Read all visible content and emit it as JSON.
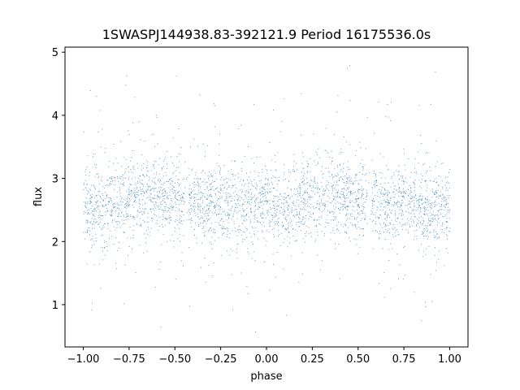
{
  "chart_data": {
    "type": "scatter",
    "title": "1SWASPJ144938.83-392121.9 Period 16175536.0s",
    "xlabel": "phase",
    "ylabel": "flux",
    "xlim": [
      -1.1,
      1.1
    ],
    "ylim": [
      0.33,
      5.08
    ],
    "x_ticks": [
      -1.0,
      -0.75,
      -0.5,
      -0.25,
      0.0,
      0.25,
      0.5,
      0.75,
      1.0
    ],
    "x_tick_labels": [
      "−1.00",
      "−0.75",
      "−0.50",
      "−0.25",
      "0.00",
      "0.25",
      "0.50",
      "0.75",
      "1.00"
    ],
    "y_ticks": [
      1,
      2,
      3,
      4,
      5
    ],
    "y_tick_labels": [
      "1",
      "2",
      "3",
      "4",
      "5"
    ],
    "grid": false,
    "marker_color": "#1f77b4",
    "series": [
      {
        "x_range": [
          -1.0,
          1.0
        ],
        "approx_points": 20000,
        "typical_flux_band": [
          2.0,
          3.3
        ],
        "flux_extent": [
          0.55,
          4.92
        ],
        "description_points": [
          {
            "phase": -1.0,
            "flux": 2.6
          },
          {
            "phase": -0.9,
            "flux": 2.5
          },
          {
            "phase": -0.75,
            "flux": 2.7
          },
          {
            "phase": -0.6,
            "flux": 2.75
          },
          {
            "phase": -0.5,
            "flux": 2.65
          },
          {
            "phase": -0.3,
            "flux": 2.6
          },
          {
            "phase": -0.15,
            "flux": 2.55
          },
          {
            "phase": 0.0,
            "flux": 2.6
          },
          {
            "phase": 0.1,
            "flux": 2.5
          },
          {
            "phase": 0.25,
            "flux": 2.7
          },
          {
            "phase": 0.4,
            "flux": 2.75
          },
          {
            "phase": 0.5,
            "flux": 2.65
          },
          {
            "phase": 0.7,
            "flux": 2.6
          },
          {
            "phase": 0.85,
            "flux": 2.55
          },
          {
            "phase": 1.0,
            "flux": 2.6
          }
        ],
        "gaps": [
          -0.44,
          0.56
        ]
      }
    ]
  }
}
